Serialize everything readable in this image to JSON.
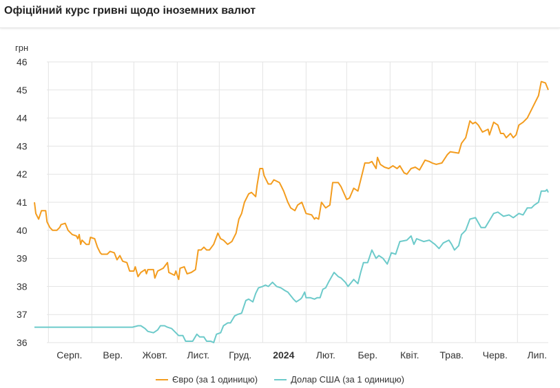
{
  "title": "Офіційний курс гривні щодо іноземних валют",
  "chart_data": {
    "type": "line",
    "title": "Офіційний курс гривні щодо іноземних валют",
    "ylabel": "грн",
    "xlabel": "",
    "x_units": "days since 2023-07-22",
    "xlim": [
      0,
      367
    ],
    "ylim": [
      36,
      46
    ],
    "yticks": [
      36,
      37,
      38,
      39,
      40,
      41,
      42,
      43,
      44,
      45,
      46
    ],
    "month_gridlines": [
      10,
      41,
      71,
      102,
      132,
      163,
      194,
      223,
      254,
      284,
      315,
      345
    ],
    "xtick_labels": [
      {
        "x": 25,
        "label": "Серп.",
        "bold": false
      },
      {
        "x": 56,
        "label": "Вер.",
        "bold": false
      },
      {
        "x": 86,
        "label": "Жовт.",
        "bold": false
      },
      {
        "x": 117,
        "label": "Лист.",
        "bold": false
      },
      {
        "x": 147,
        "label": "Груд.",
        "bold": false
      },
      {
        "x": 178,
        "label": "2024",
        "bold": true
      },
      {
        "x": 208,
        "label": "Лют.",
        "bold": false
      },
      {
        "x": 238,
        "label": "Бер.",
        "bold": false
      },
      {
        "x": 268,
        "label": "Квіт.",
        "bold": false
      },
      {
        "x": 298,
        "label": "Трав.",
        "bold": false
      },
      {
        "x": 329,
        "label": "Черв.",
        "bold": false
      },
      {
        "x": 359,
        "label": "Лип.",
        "bold": false
      }
    ],
    "grid": true,
    "legend_position": "bottom",
    "series": [
      {
        "name": "Євро (за 1 одиницю)",
        "color": "#f39c1e",
        "points": [
          [
            0,
            41.0
          ],
          [
            1,
            40.6
          ],
          [
            3,
            40.4
          ],
          [
            5,
            40.7
          ],
          [
            8,
            40.7
          ],
          [
            9,
            40.3
          ],
          [
            11,
            40.1
          ],
          [
            13,
            40.0
          ],
          [
            16,
            40.0
          ],
          [
            18,
            40.1
          ],
          [
            19,
            40.2
          ],
          [
            22,
            40.25
          ],
          [
            24,
            40.0
          ],
          [
            27,
            39.85
          ],
          [
            30,
            39.8
          ],
          [
            31,
            39.7
          ],
          [
            32,
            39.85
          ],
          [
            33,
            39.5
          ],
          [
            34,
            39.65
          ],
          [
            37,
            39.5
          ],
          [
            39,
            39.5
          ],
          [
            40,
            39.75
          ],
          [
            43,
            39.7
          ],
          [
            45,
            39.4
          ],
          [
            47,
            39.2
          ],
          [
            48,
            39.15
          ],
          [
            52,
            39.15
          ],
          [
            54,
            39.25
          ],
          [
            57,
            39.2
          ],
          [
            59,
            38.95
          ],
          [
            61,
            39.1
          ],
          [
            63,
            38.9
          ],
          [
            66,
            38.85
          ],
          [
            68,
            38.55
          ],
          [
            71,
            38.55
          ],
          [
            72,
            38.7
          ],
          [
            74,
            38.35
          ],
          [
            76,
            38.5
          ],
          [
            79,
            38.6
          ],
          [
            80,
            38.45
          ],
          [
            81,
            38.6
          ],
          [
            85,
            38.6
          ],
          [
            86,
            38.3
          ],
          [
            88,
            38.55
          ],
          [
            92,
            38.65
          ],
          [
            95,
            38.85
          ],
          [
            96,
            38.5
          ],
          [
            100,
            38.4
          ],
          [
            101,
            38.55
          ],
          [
            103,
            38.25
          ],
          [
            104,
            38.65
          ],
          [
            107,
            38.7
          ],
          [
            109,
            38.45
          ],
          [
            112,
            38.5
          ],
          [
            115,
            38.6
          ],
          [
            117,
            39.3
          ],
          [
            119,
            39.3
          ],
          [
            121,
            39.4
          ],
          [
            123,
            39.3
          ],
          [
            125,
            39.3
          ],
          [
            128,
            39.5
          ],
          [
            131,
            39.9
          ],
          [
            133,
            39.7
          ],
          [
            135,
            39.65
          ],
          [
            138,
            39.5
          ],
          [
            141,
            39.6
          ],
          [
            144,
            39.9
          ],
          [
            146,
            40.4
          ],
          [
            148,
            40.6
          ],
          [
            150,
            41.0
          ],
          [
            153,
            41.3
          ],
          [
            155,
            41.35
          ],
          [
            158,
            41.2
          ],
          [
            159,
            41.6
          ],
          [
            161,
            42.2
          ],
          [
            163,
            42.2
          ],
          [
            164,
            41.95
          ],
          [
            167,
            41.65
          ],
          [
            169,
            41.65
          ],
          [
            171,
            41.8
          ],
          [
            175,
            41.7
          ],
          [
            176,
            41.6
          ],
          [
            178,
            41.4
          ],
          [
            181,
            41.0
          ],
          [
            183,
            40.8
          ],
          [
            186,
            40.7
          ],
          [
            188,
            40.9
          ],
          [
            191,
            41.0
          ],
          [
            194,
            40.6
          ],
          [
            198,
            40.55
          ],
          [
            200,
            40.4
          ],
          [
            201,
            40.45
          ],
          [
            203,
            40.4
          ],
          [
            205,
            41.0
          ],
          [
            208,
            40.8
          ],
          [
            211,
            40.9
          ],
          [
            213,
            41.7
          ],
          [
            217,
            41.7
          ],
          [
            219,
            41.55
          ],
          [
            223,
            41.1
          ],
          [
            225,
            41.15
          ],
          [
            228,
            41.5
          ],
          [
            231,
            41.4
          ],
          [
            234,
            42.0
          ],
          [
            236,
            42.4
          ],
          [
            239,
            42.4
          ],
          [
            241,
            42.45
          ],
          [
            244,
            42.2
          ],
          [
            245,
            42.6
          ],
          [
            247,
            42.35
          ],
          [
            250,
            42.25
          ],
          [
            253,
            42.2
          ],
          [
            256,
            42.3
          ],
          [
            259,
            42.2
          ],
          [
            261,
            42.3
          ],
          [
            264,
            42.05
          ],
          [
            266,
            42.0
          ],
          [
            269,
            42.2
          ],
          [
            272,
            42.25
          ],
          [
            275,
            42.15
          ],
          [
            279,
            42.5
          ],
          [
            282,
            42.45
          ],
          [
            284,
            42.4
          ],
          [
            287,
            42.35
          ],
          [
            291,
            42.4
          ],
          [
            295,
            42.7
          ],
          [
            297,
            42.8
          ],
          [
            303,
            42.75
          ],
          [
            305,
            43.1
          ],
          [
            308,
            43.3
          ],
          [
            311,
            43.9
          ],
          [
            313,
            43.8
          ],
          [
            315,
            43.85
          ],
          [
            317,
            43.75
          ],
          [
            320,
            43.5
          ],
          [
            324,
            43.6
          ],
          [
            325,
            43.4
          ],
          [
            328,
            43.85
          ],
          [
            331,
            43.75
          ],
          [
            333,
            43.45
          ],
          [
            335,
            43.45
          ],
          [
            337,
            43.3
          ],
          [
            340,
            43.45
          ],
          [
            342,
            43.3
          ],
          [
            344,
            43.4
          ],
          [
            346,
            43.75
          ],
          [
            349,
            43.85
          ],
          [
            352,
            44.0
          ],
          [
            355,
            44.3
          ],
          [
            357,
            44.5
          ],
          [
            360,
            44.8
          ],
          [
            362,
            45.3
          ],
          [
            365,
            45.25
          ],
          [
            367,
            45.0
          ]
        ]
      },
      {
        "name": "Долар США (за 1 одиницю)",
        "color": "#6ccaca",
        "points": [
          [
            0,
            36.55
          ],
          [
            70,
            36.55
          ],
          [
            74,
            36.6
          ],
          [
            76,
            36.6
          ],
          [
            79,
            36.5
          ],
          [
            81,
            36.4
          ],
          [
            85,
            36.35
          ],
          [
            88,
            36.45
          ],
          [
            90,
            36.6
          ],
          [
            93,
            36.6
          ],
          [
            95,
            36.55
          ],
          [
            98,
            36.5
          ],
          [
            101,
            36.35
          ],
          [
            103,
            36.25
          ],
          [
            106,
            36.25
          ],
          [
            108,
            36.05
          ],
          [
            113,
            36.05
          ],
          [
            116,
            36.3
          ],
          [
            118,
            36.2
          ],
          [
            121,
            36.2
          ],
          [
            123,
            36.05
          ],
          [
            126,
            36.05
          ],
          [
            128,
            36.0
          ],
          [
            130,
            36.3
          ],
          [
            133,
            36.35
          ],
          [
            135,
            36.6
          ],
          [
            138,
            36.7
          ],
          [
            140,
            36.7
          ],
          [
            143,
            36.95
          ],
          [
            145,
            37.0
          ],
          [
            148,
            37.05
          ],
          [
            151,
            37.5
          ],
          [
            153,
            37.55
          ],
          [
            156,
            37.45
          ],
          [
            158,
            37.75
          ],
          [
            160,
            37.95
          ],
          [
            163,
            38.0
          ],
          [
            165,
            38.05
          ],
          [
            167,
            38.0
          ],
          [
            170,
            38.15
          ],
          [
            173,
            38.0
          ],
          [
            176,
            37.95
          ],
          [
            179,
            37.85
          ],
          [
            181,
            37.8
          ],
          [
            185,
            37.55
          ],
          [
            187,
            37.45
          ],
          [
            190,
            37.55
          ],
          [
            191,
            37.6
          ],
          [
            193,
            37.8
          ],
          [
            194,
            37.6
          ],
          [
            197,
            37.6
          ],
          [
            200,
            37.55
          ],
          [
            202,
            37.6
          ],
          [
            204,
            37.6
          ],
          [
            206,
            37.9
          ],
          [
            208,
            37.95
          ],
          [
            210,
            38.15
          ],
          [
            214,
            38.5
          ],
          [
            217,
            38.35
          ],
          [
            219,
            38.3
          ],
          [
            222,
            38.15
          ],
          [
            224,
            38.0
          ],
          [
            228,
            38.25
          ],
          [
            231,
            38.1
          ],
          [
            233,
            38.5
          ],
          [
            235,
            38.85
          ],
          [
            238,
            38.85
          ],
          [
            241,
            39.3
          ],
          [
            244,
            39.0
          ],
          [
            246,
            39.1
          ],
          [
            249,
            39.0
          ],
          [
            252,
            38.8
          ],
          [
            255,
            39.2
          ],
          [
            258,
            39.15
          ],
          [
            261,
            39.6
          ],
          [
            266,
            39.65
          ],
          [
            269,
            39.8
          ],
          [
            271,
            39.5
          ],
          [
            273,
            39.7
          ],
          [
            278,
            39.6
          ],
          [
            282,
            39.65
          ],
          [
            286,
            39.5
          ],
          [
            289,
            39.35
          ],
          [
            292,
            39.55
          ],
          [
            296,
            39.65
          ],
          [
            298,
            39.5
          ],
          [
            300,
            39.3
          ],
          [
            303,
            39.45
          ],
          [
            305,
            39.85
          ],
          [
            308,
            40.0
          ],
          [
            311,
            40.4
          ],
          [
            315,
            40.45
          ],
          [
            319,
            40.1
          ],
          [
            322,
            40.1
          ],
          [
            325,
            40.35
          ],
          [
            328,
            40.6
          ],
          [
            331,
            40.65
          ],
          [
            335,
            40.5
          ],
          [
            339,
            40.55
          ],
          [
            342,
            40.45
          ],
          [
            346,
            40.6
          ],
          [
            349,
            40.55
          ],
          [
            352,
            40.8
          ],
          [
            355,
            40.8
          ],
          [
            357,
            40.9
          ],
          [
            360,
            41.0
          ],
          [
            362,
            41.4
          ],
          [
            365,
            41.4
          ],
          [
            366,
            41.45
          ],
          [
            367,
            41.35
          ]
        ]
      }
    ]
  },
  "legend": [
    "Євро (за 1 одиницю)",
    "Долар США (за 1 одиницю)"
  ]
}
